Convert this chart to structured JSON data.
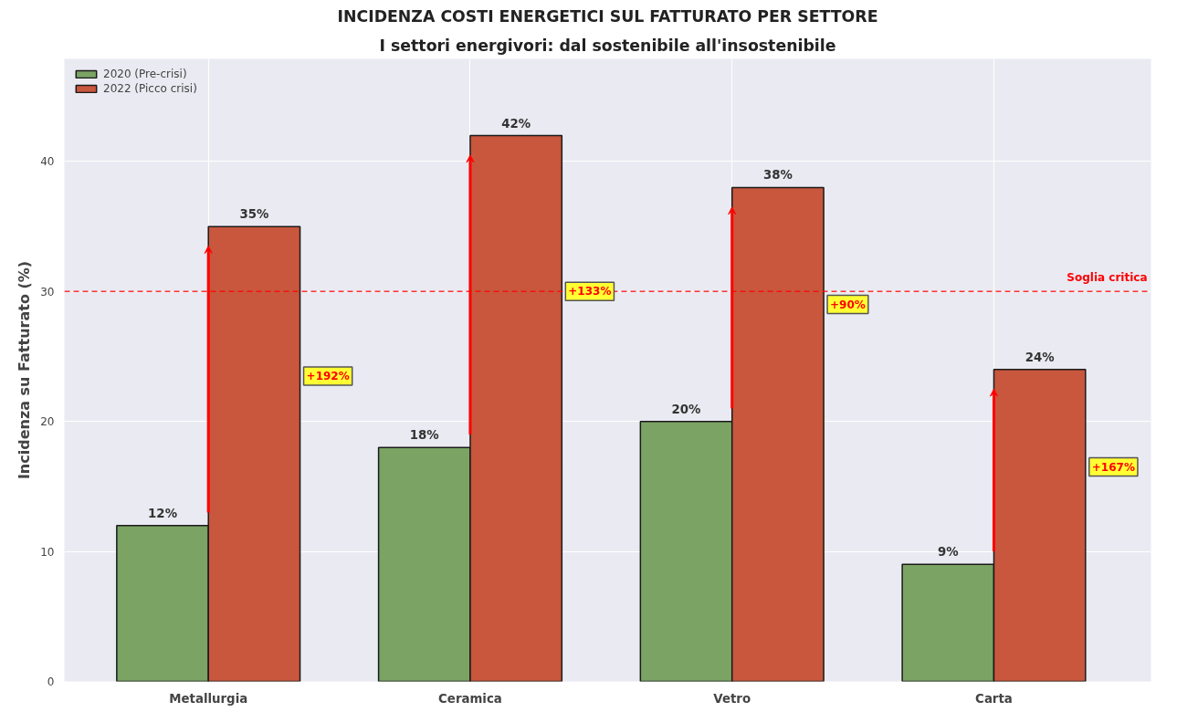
{
  "chart_data": {
    "type": "bar",
    "title": "INCIDENZA COSTI ENERGETICI SUL FATTURATO PER SETTORE",
    "subtitle": "I settori energivori: dal sostenibile all'insostenibile",
    "ylabel": "Incidenza su Fatturato (%)",
    "categories": [
      "Metallurgia",
      "Ceramica",
      "Vetro",
      "Carta"
    ],
    "series": [
      {
        "name": "2020 (Pre-crisi)",
        "color": "#7ba364",
        "values": [
          12,
          18,
          20,
          9
        ]
      },
      {
        "name": "2022 (Picco crisi)",
        "color": "#c8573d",
        "values": [
          35,
          42,
          38,
          24
        ]
      }
    ],
    "value_labels": [
      [
        "12%",
        "18%",
        "20%",
        "9%"
      ],
      [
        "35%",
        "42%",
        "38%",
        "24%"
      ]
    ],
    "ylim": [
      0,
      47.9
    ],
    "yticks": [
      0,
      10,
      20,
      30,
      40
    ],
    "grid": true,
    "legend": "top left",
    "ref_lines": [
      {
        "axis": "y",
        "value": 30,
        "label": "Soglia critica",
        "color": "#ff0000",
        "line_style": "dashed"
      }
    ],
    "annotations": [
      "+192%",
      "+133%",
      "+90%",
      "+167%"
    ]
  }
}
